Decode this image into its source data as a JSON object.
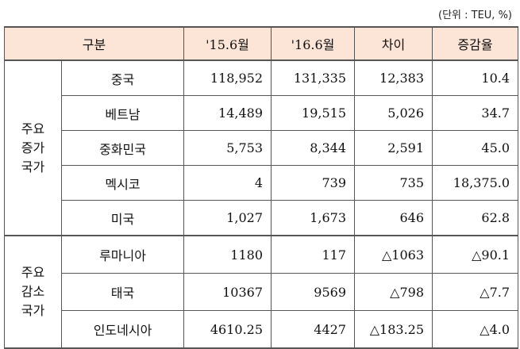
{
  "unit_note": "(단위 : TEU, %)",
  "headers": [
    "구분",
    "'15.6월",
    "'16.6월",
    "차이",
    "증감율"
  ],
  "groups": [
    {
      "label_lines": [
        "주요",
        "증가",
        "국가"
      ],
      "rows": [
        {
          "country": "중국",
          "y2015": "118,952",
          "y2016": "131,335",
          "diff": "12,383",
          "rate": "10.4"
        },
        {
          "country": "베트남",
          "y2015": "14,489",
          "y2016": "19,515",
          "diff": "5,026",
          "rate": "34.7"
        },
        {
          "country": "중화민국",
          "y2015": "5,753",
          "y2016": "8,344",
          "diff": "2,591",
          "rate": "45.0"
        },
        {
          "country": "멕시코",
          "y2015": "4",
          "y2016": "739",
          "diff": "735",
          "rate": "18,375.0"
        },
        {
          "country": "미국",
          "y2015": "1,027",
          "y2016": "1,673",
          "diff": "646",
          "rate": "62.8"
        }
      ]
    },
    {
      "label_lines": [
        "주요",
        "감소",
        "국가"
      ],
      "rows": [
        {
          "country": "루마니아",
          "y2015": "1180",
          "y2016": "117",
          "diff": "△1063",
          "rate": "△90.1"
        },
        {
          "country": "태국",
          "y2015": "10367",
          "y2016": "9569",
          "diff": "△798",
          "rate": "△7.7"
        },
        {
          "country": "인도네시아",
          "y2015": "4610.25",
          "y2016": "4427",
          "diff": "△183.25",
          "rate": "△4.0"
        }
      ]
    }
  ]
}
